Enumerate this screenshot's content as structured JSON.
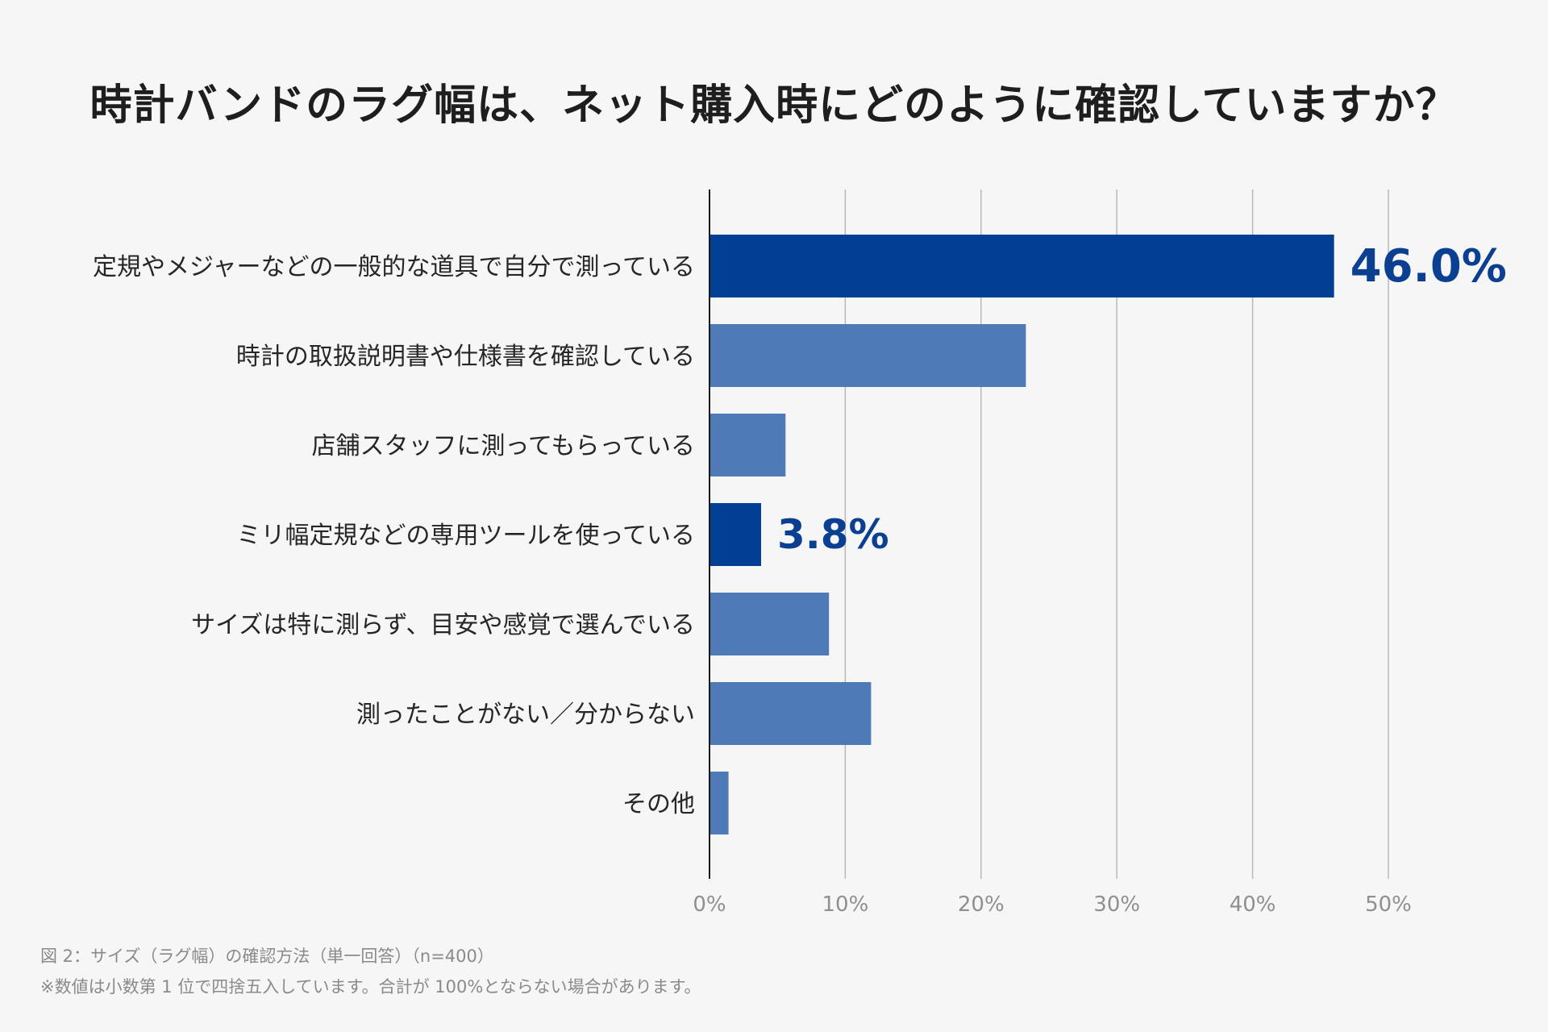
{
  "title": "時計バンドのラグ幅は、ネット購入時にどのように確認していますか？",
  "footnotes": {
    "caption": "図 2：サイズ（ラグ幅）の確認方法（単一回答）（n=400）",
    "note": "※数値は小数第 1 位で四捨五入しています。合計が 100%とならない場合があります。"
  },
  "colors": {
    "highlight": "#003f93",
    "normal": "#4e7bb6",
    "axis": "#1a1a1a",
    "grid": "#b9b9b9",
    "value_label": "#0a3f92"
  },
  "chart_data": {
    "type": "bar",
    "orientation": "horizontal",
    "title": "時計バンドのラグ幅は、ネット購入時にどのように確認していますか？",
    "xlabel": "",
    "ylabel": "",
    "xlim": [
      0,
      50
    ],
    "ticks": [
      0,
      10,
      20,
      30,
      40,
      50
    ],
    "tick_labels": [
      "0%",
      "10%",
      "20%",
      "30%",
      "40%",
      "50%"
    ],
    "grid": true,
    "categories": [
      "定規やメジャーなどの一般的な道具で自分で測っている",
      "時計の取扱説明書や仕様書を確認している",
      "店舗スタッフに測ってもらっている",
      "ミリ幅定規などの専用ツールを使っている",
      "サイズは特に測らず、目安や感覚で選んでいる",
      "測ったことがない／分からない",
      "その他"
    ],
    "values": [
      46.0,
      23.3,
      5.6,
      3.8,
      8.8,
      11.9,
      1.4
    ],
    "highlighted": [
      true,
      false,
      false,
      true,
      false,
      false,
      false
    ],
    "data_labels": [
      "46.0%",
      "",
      "",
      "3.8%",
      "",
      "",
      ""
    ]
  }
}
